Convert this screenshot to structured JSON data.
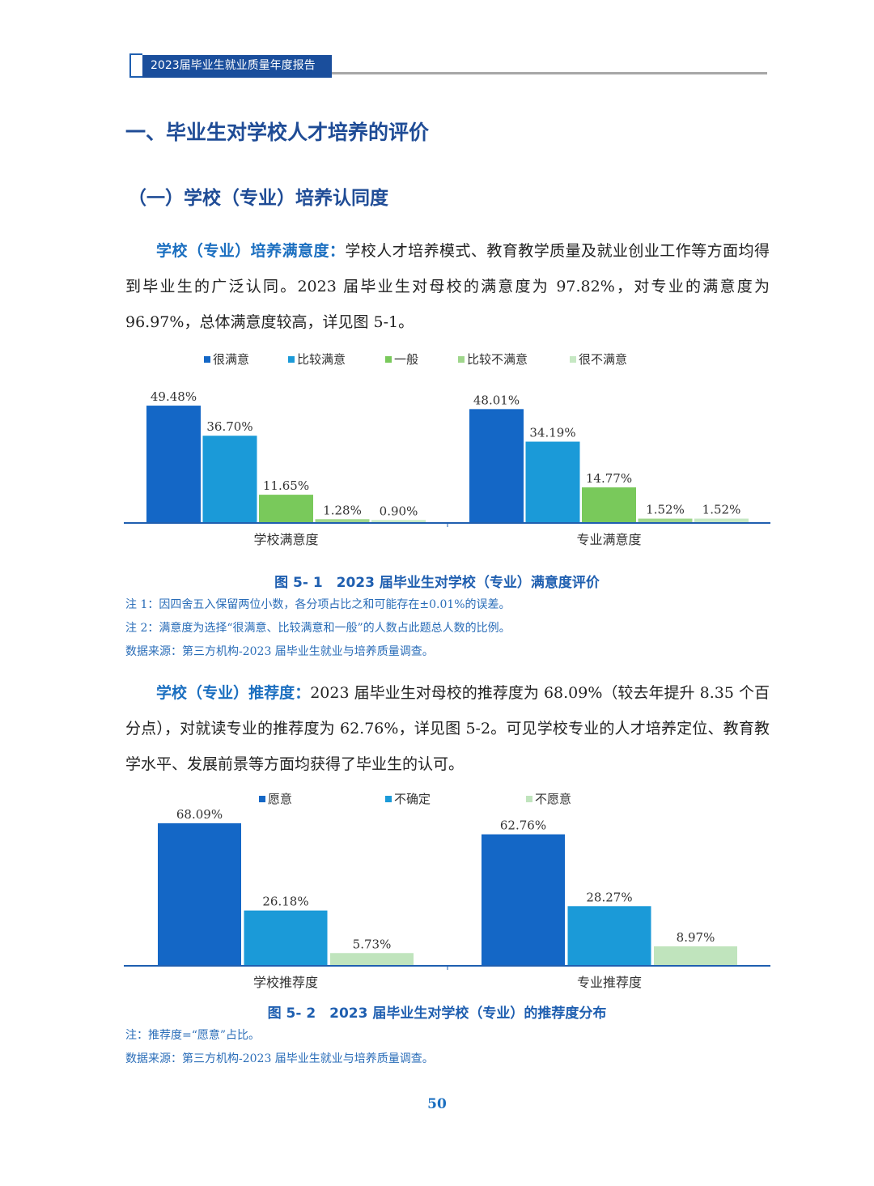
{
  "header": {
    "title": "2023届毕业生就业质量年度报告"
  },
  "heading1": "一、毕业生对学校人才培养的评价",
  "heading2": "（一）学校（专业）培养认同度",
  "para1": {
    "lead": "学校（专业）培养满意度：",
    "text": "学校人才培养模式、教育教学质量及就业创业工作等方面均得到毕业生的广泛认同。2023 届毕业生对母校的满意度为 97.82%，对专业的满意度为 96.97%，总体满意度较高，详见图 5-1。"
  },
  "figure1": {
    "caption": "图 5- 1　2023 届毕业生对学校（专业）满意度评价",
    "notes": [
      "注 1：因四舍五入保留两位小数，各分项占比之和可能存在±0.01%的误差。",
      "注 2：满意度为选择“很满意、比较满意和一般”的人数占此题总人数的比例。",
      "数据来源：第三方机构-2023 届毕业生就业与培养质量调查。"
    ]
  },
  "para2": {
    "lead": "学校（专业）推荐度：",
    "text": "2023 届毕业生对母校的推荐度为 68.09%（较去年提升 8.35 个百分点），对就读专业的推荐度为 62.76%，详见图 5-2。可见学校专业的人才培养定位、教育教学水平、发展前景等方面均获得了毕业生的认可。"
  },
  "figure2": {
    "caption": "图 5- 2　2023 届毕业生对学校（专业）的推荐度分布",
    "notes": [
      "注：推荐度=“愿意”占比。",
      "数据来源：第三方机构-2023 届毕业生就业与培养质量调查。"
    ]
  },
  "page_number": "50",
  "chart_data": [
    {
      "type": "bar",
      "categories": [
        "学校满意度",
        "专业满意度"
      ],
      "series": [
        {
          "name": "很满意",
          "color": "#1467c6",
          "values": [
            49.48,
            48.01
          ],
          "labels": [
            "49.48%",
            "48.01%"
          ]
        },
        {
          "name": "比较满意",
          "color": "#1b9ad8",
          "values": [
            36.7,
            34.19
          ],
          "labels": [
            "36.70%",
            "34.19%"
          ]
        },
        {
          "name": "一般",
          "color": "#79c95b",
          "values": [
            11.65,
            14.77
          ],
          "labels": [
            "11.65%",
            "14.77%"
          ]
        },
        {
          "name": "比较不满意",
          "color": "#9fd68b",
          "values": [
            1.28,
            1.52
          ],
          "labels": [
            "1.28%",
            "1.52%"
          ]
        },
        {
          "name": "很不满意",
          "color": "#c6e8c3",
          "values": [
            0.9,
            1.52
          ],
          "labels": [
            "0.90%",
            "1.52%"
          ]
        }
      ],
      "ylim": [
        0,
        55
      ],
      "legend": "top",
      "grid": false
    },
    {
      "type": "bar",
      "categories": [
        "学校推荐度",
        "专业推荐度"
      ],
      "series": [
        {
          "name": "愿意",
          "color": "#1467c6",
          "values": [
            68.09,
            62.76
          ],
          "labels": [
            "68.09%",
            "62.76%"
          ]
        },
        {
          "name": "不确定",
          "color": "#1b9ad8",
          "values": [
            26.18,
            28.27
          ],
          "labels": [
            "26.18%",
            "28.27%"
          ]
        },
        {
          "name": "不愿意",
          "color": "#c0e4bd",
          "values": [
            5.73,
            8.97
          ],
          "labels": [
            "5.73%",
            "8.97%"
          ]
        }
      ],
      "ylim": [
        0,
        76
      ],
      "legend": "top",
      "grid": false
    }
  ]
}
